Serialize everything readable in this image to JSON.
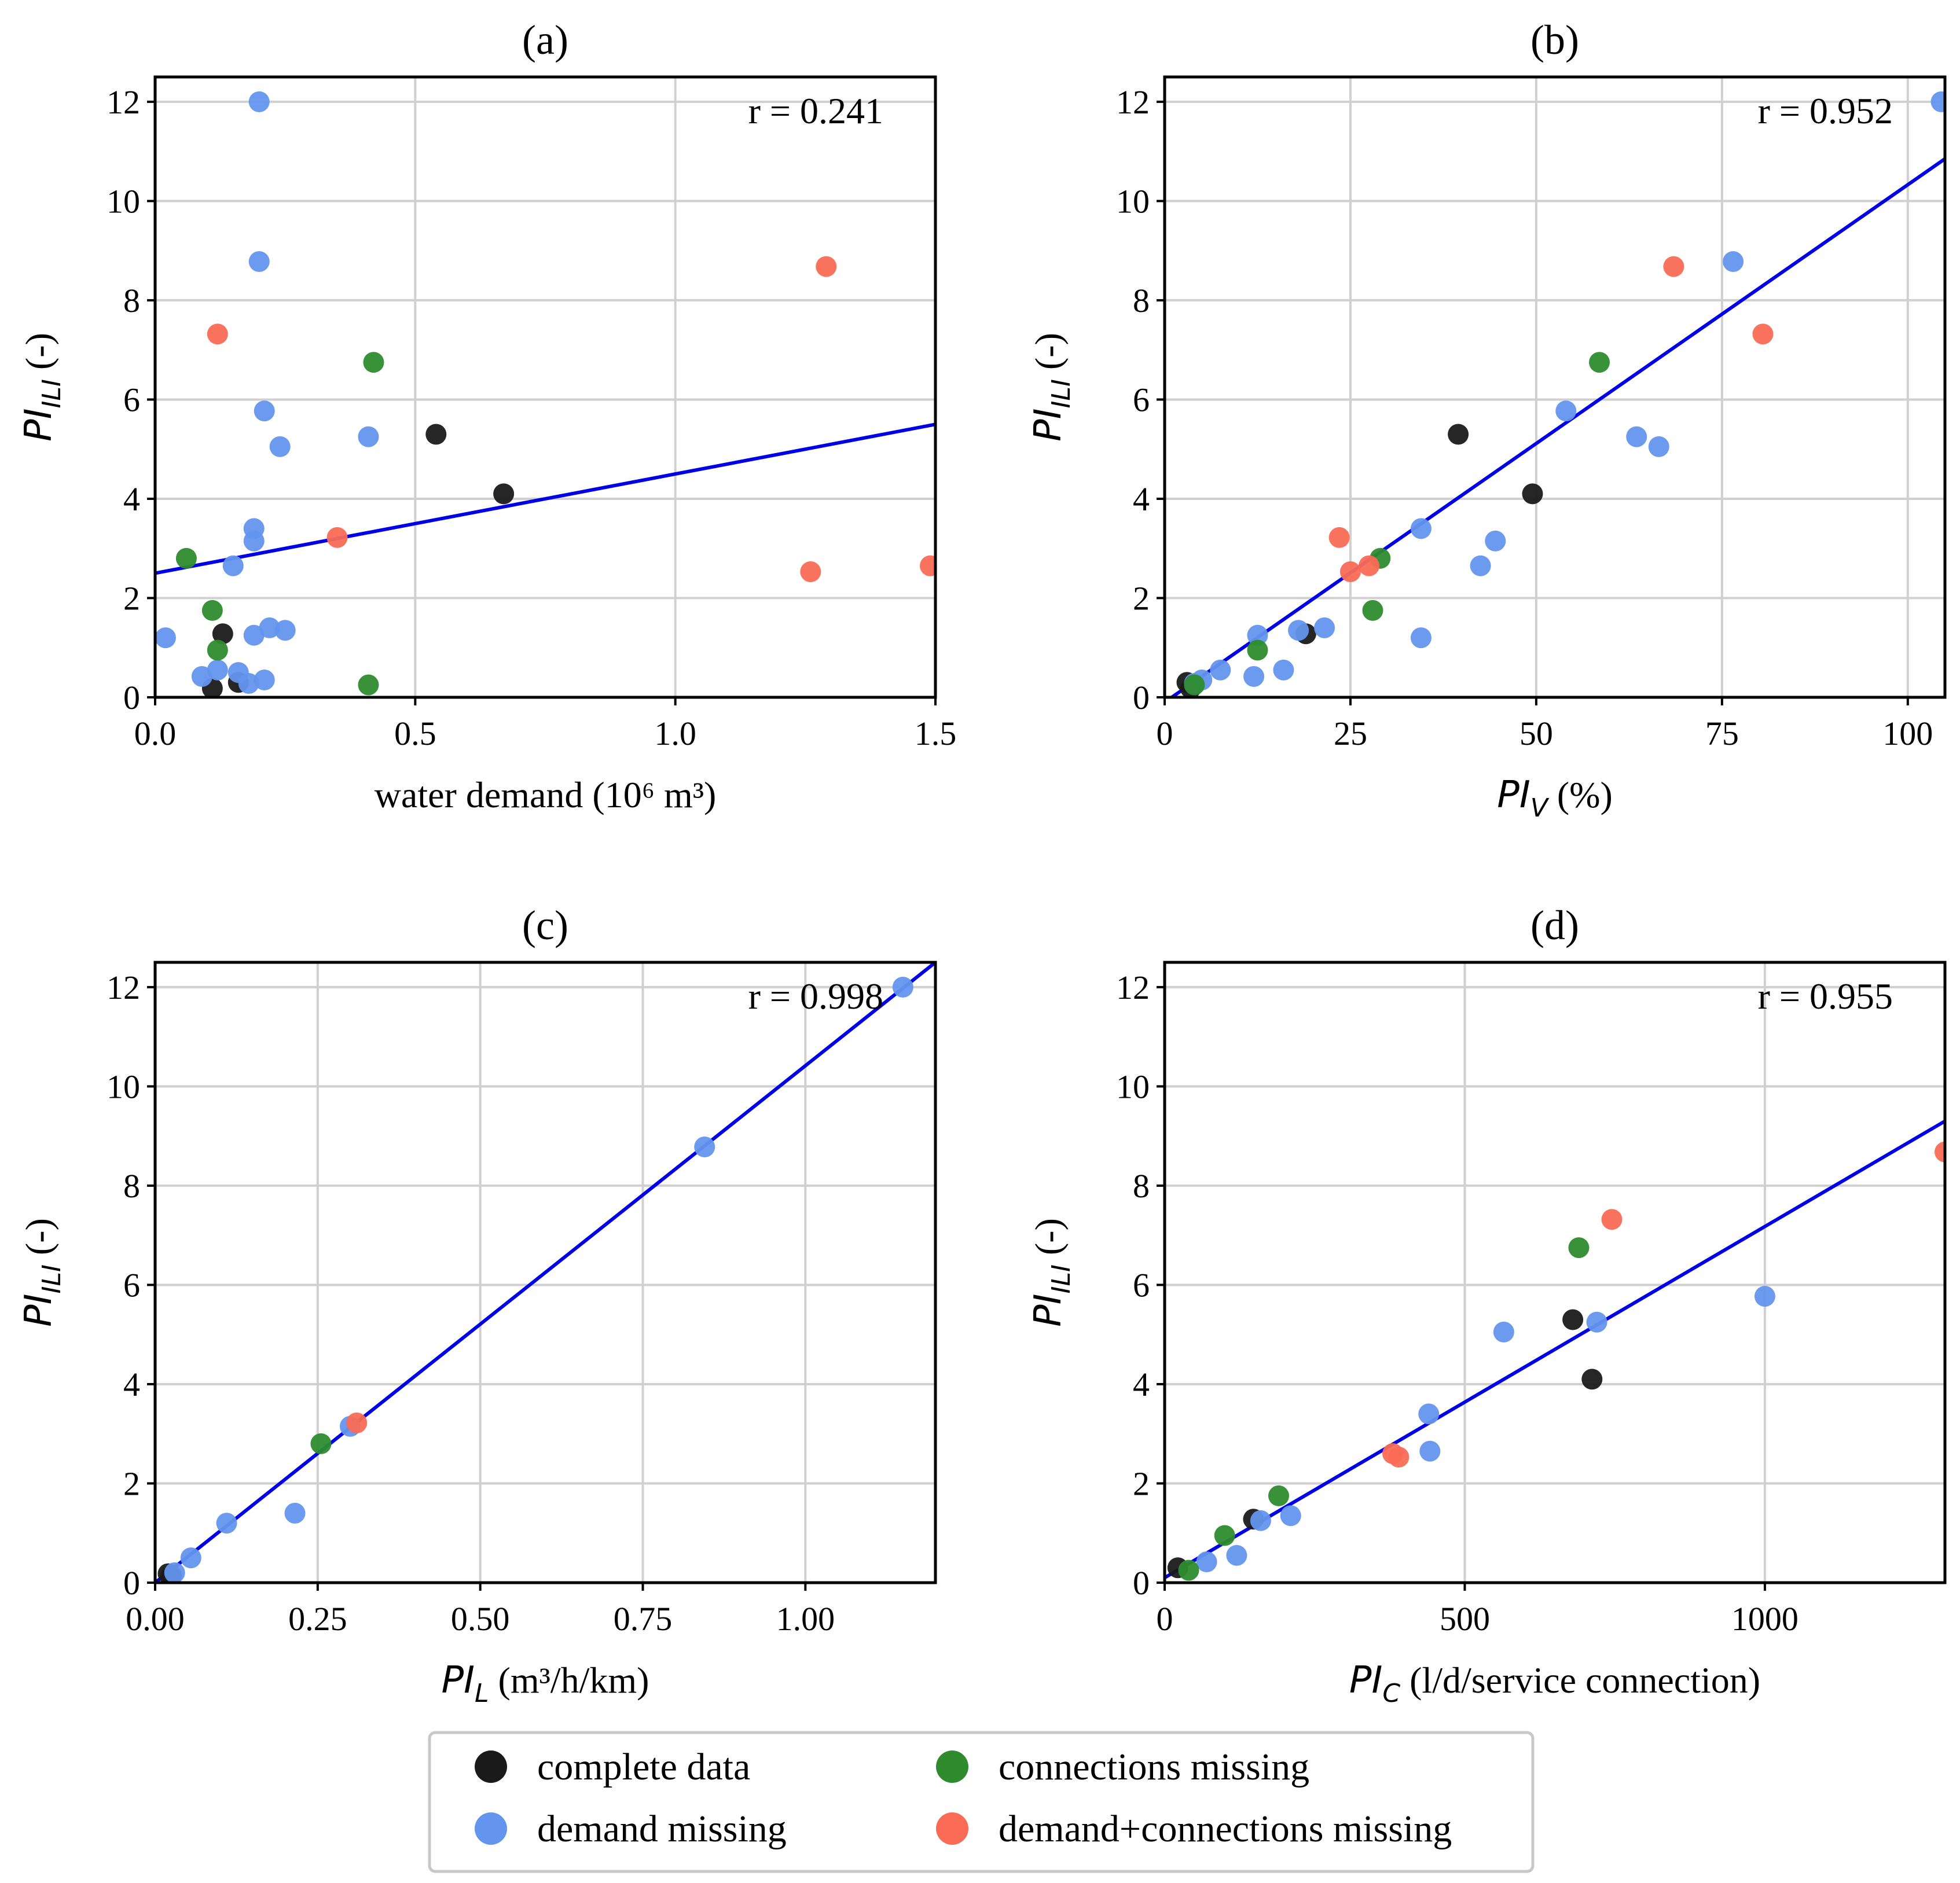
{
  "colors": {
    "complete": "#1a1a1a",
    "demand_missing": "#6495ed",
    "connections_missing": "#2e8b2e",
    "both_missing": "#fa6b55",
    "fit_line": "#0000e6"
  },
  "legend": [
    {
      "key": "complete",
      "label": "complete data"
    },
    {
      "key": "demand_missing",
      "label": "demand missing"
    },
    {
      "key": "connections_missing",
      "label": "connections missing"
    },
    {
      "key": "both_missing",
      "label": "demand+connections missing"
    }
  ],
  "chart_data": [
    {
      "id": "a",
      "type": "scatter",
      "title": "(a)",
      "xlabel_parts": [
        {
          "t": "water demand (10⁶ m³)",
          "style": "plain"
        }
      ],
      "ylabel_parts": [
        {
          "t": "PI",
          "style": "italic"
        },
        {
          "t": "ILI",
          "style": "italic-sub"
        },
        {
          "t": " (-)",
          "style": "plain"
        }
      ],
      "xlim": [
        0,
        1.5
      ],
      "ylim": [
        0,
        12.5
      ],
      "xticks": [
        0,
        0.5,
        1.0,
        1.5
      ],
      "xtick_labels": [
        "0.0",
        "0.5",
        "1.0",
        "1.5"
      ],
      "yticks": [
        0,
        2,
        4,
        6,
        8,
        10,
        12
      ],
      "ytick_labels": [
        "0",
        "2",
        "4",
        "6",
        "8",
        "10",
        "12"
      ],
      "grid": true,
      "annotation": "r = 0.241",
      "fit_line": {
        "x": [
          0,
          1.5
        ],
        "y": [
          2.5,
          5.5
        ]
      },
      "series": [
        {
          "name": "complete data",
          "key": "complete",
          "x": [
            0.11,
            0.13,
            0.16,
            0.54,
            0.67
          ],
          "y": [
            0.18,
            1.28,
            0.3,
            5.3,
            4.1
          ]
        },
        {
          "name": "demand missing",
          "key": "demand_missing",
          "x": [
            0.2,
            0.2,
            0.21,
            0.24,
            0.41,
            0.19,
            0.19,
            0.15,
            0.02,
            0.19,
            0.22,
            0.25,
            0.09,
            0.12,
            0.16,
            0.21,
            0.18
          ],
          "y": [
            12.0,
            8.78,
            5.77,
            5.05,
            5.25,
            3.4,
            3.15,
            2.65,
            1.2,
            1.25,
            1.4,
            1.35,
            0.42,
            0.55,
            0.5,
            0.35,
            0.28
          ]
        },
        {
          "name": "connections missing",
          "key": "connections_missing",
          "x": [
            0.42,
            0.06,
            0.11,
            0.12,
            0.41
          ],
          "y": [
            6.75,
            2.8,
            1.75,
            0.95,
            0.25
          ]
        },
        {
          "name": "demand+connections missing",
          "key": "both_missing",
          "x": [
            0.12,
            1.29,
            0.35,
            1.26,
            1.49
          ],
          "y": [
            7.32,
            8.68,
            3.22,
            2.53,
            2.65
          ]
        }
      ]
    },
    {
      "id": "b",
      "type": "scatter",
      "title": "(b)",
      "xlabel_parts": [
        {
          "t": "PI",
          "style": "italic"
        },
        {
          "t": "V",
          "style": "italic-sub"
        },
        {
          "t": " (%)",
          "style": "plain"
        }
      ],
      "ylabel_parts": [
        {
          "t": "PI",
          "style": "italic"
        },
        {
          "t": "ILI",
          "style": "italic-sub"
        },
        {
          "t": " (-)",
          "style": "plain"
        }
      ],
      "xlim": [
        0,
        105
      ],
      "ylim": [
        0,
        12.5
      ],
      "xticks": [
        0,
        25,
        50,
        75,
        100
      ],
      "xtick_labels": [
        "0",
        "25",
        "50",
        "75",
        "100"
      ],
      "yticks": [
        0,
        2,
        4,
        6,
        8,
        10,
        12
      ],
      "ytick_labels": [
        "0",
        "2",
        "4",
        "6",
        "8",
        "10",
        "12"
      ],
      "grid": true,
      "annotation": "r = 0.952",
      "fit_line": {
        "x": [
          0,
          105
        ],
        "y": [
          -0.1,
          10.85
        ]
      },
      "series": [
        {
          "name": "complete data",
          "key": "complete",
          "x": [
            39.5,
            49.5,
            19,
            3,
            3.5
          ],
          "y": [
            5.3,
            4.1,
            1.28,
            0.3,
            0.18
          ]
        },
        {
          "name": "demand missing",
          "key": "demand_missing",
          "x": [
            104.5,
            76.5,
            54,
            63.5,
            66.5,
            34.5,
            44.5,
            42.5,
            34.5,
            12.5,
            18,
            21.5,
            7.5,
            12,
            16,
            5,
            4
          ],
          "y": [
            12.0,
            8.78,
            5.77,
            5.25,
            5.05,
            3.4,
            3.15,
            2.65,
            1.2,
            1.25,
            1.35,
            1.4,
            0.55,
            0.42,
            0.55,
            0.35,
            0.28
          ]
        },
        {
          "name": "connections missing",
          "key": "connections_missing",
          "x": [
            58.5,
            29,
            28,
            12.5,
            4
          ],
          "y": [
            6.75,
            2.8,
            1.75,
            0.95,
            0.25
          ]
        },
        {
          "name": "demand+connections missing",
          "key": "both_missing",
          "x": [
            68.5,
            80.5,
            23.5,
            25,
            27.5
          ],
          "y": [
            8.68,
            7.32,
            3.22,
            2.53,
            2.65
          ]
        }
      ]
    },
    {
      "id": "c",
      "type": "scatter",
      "title": "(c)",
      "xlabel_parts": [
        {
          "t": "PI",
          "style": "italic"
        },
        {
          "t": "L",
          "style": "italic-sub"
        },
        {
          "t": " (m³/h/km)",
          "style": "plain"
        }
      ],
      "ylabel_parts": [
        {
          "t": "PI",
          "style": "italic"
        },
        {
          "t": "ILI",
          "style": "italic-sub"
        },
        {
          "t": " (-)",
          "style": "plain"
        }
      ],
      "xlim": [
        0,
        1.2
      ],
      "ylim": [
        0,
        12.5
      ],
      "xticks": [
        0,
        0.25,
        0.5,
        0.75,
        1.0
      ],
      "xtick_labels": [
        "0.00",
        "0.25",
        "0.50",
        "0.75",
        "1.00"
      ],
      "yticks": [
        0,
        2,
        4,
        6,
        8,
        10,
        12
      ],
      "ytick_labels": [
        "0",
        "2",
        "4",
        "6",
        "8",
        "10",
        "12"
      ],
      "grid": true,
      "annotation": "r = 0.998",
      "fit_line": {
        "x": [
          0,
          1.2
        ],
        "y": [
          0.0,
          12.5
        ]
      },
      "series": [
        {
          "name": "complete data",
          "key": "complete",
          "x": [
            0.02,
            0.025
          ],
          "y": [
            0.18,
            0.15
          ]
        },
        {
          "name": "demand missing",
          "key": "demand_missing",
          "x": [
            1.15,
            0.845,
            0.3,
            0.11,
            0.215,
            0.055,
            0.03
          ],
          "y": [
            12.0,
            8.78,
            3.15,
            1.2,
            1.4,
            0.5,
            0.2
          ]
        },
        {
          "name": "connections missing",
          "key": "connections_missing",
          "x": [
            0.255
          ],
          "y": [
            2.8
          ]
        },
        {
          "name": "demand+connections missing",
          "key": "both_missing",
          "x": [
            0.31
          ],
          "y": [
            3.22
          ]
        }
      ]
    },
    {
      "id": "d",
      "type": "scatter",
      "title": "(d)",
      "xlabel_parts": [
        {
          "t": "PI",
          "style": "italic"
        },
        {
          "t": "C",
          "style": "italic-sub"
        },
        {
          "t": " (l/d/service connection)",
          "style": "plain"
        }
      ],
      "ylabel_parts": [
        {
          "t": "PI",
          "style": "italic"
        },
        {
          "t": "ILI",
          "style": "italic-sub"
        },
        {
          "t": " (-)",
          "style": "plain"
        }
      ],
      "xlim": [
        0,
        1300
      ],
      "ylim": [
        0,
        12.5
      ],
      "xticks": [
        0,
        500,
        1000
      ],
      "xtick_labels": [
        "0",
        "500",
        "1000"
      ],
      "yticks": [
        0,
        2,
        4,
        6,
        8,
        10,
        12
      ],
      "ytick_labels": [
        "0",
        "2",
        "4",
        "6",
        "8",
        "10",
        "12"
      ],
      "grid": true,
      "annotation": "r = 0.955",
      "fit_line": {
        "x": [
          0,
          1300
        ],
        "y": [
          0.1,
          9.3
        ]
      },
      "series": [
        {
          "name": "complete data",
          "key": "complete",
          "x": [
            680,
            712,
            148,
            22
          ],
          "y": [
            5.3,
            4.1,
            1.28,
            0.3
          ]
        },
        {
          "name": "demand missing",
          "key": "demand_missing",
          "x": [
            1000,
            565,
            720,
            440,
            442,
            160,
            210,
            120,
            70
          ],
          "y": [
            5.77,
            5.05,
            5.25,
            3.4,
            2.65,
            1.25,
            1.35,
            0.55,
            0.42
          ]
        },
        {
          "name": "connections missing",
          "key": "connections_missing",
          "x": [
            690,
            190,
            100,
            40
          ],
          "y": [
            6.75,
            1.75,
            0.95,
            0.25
          ]
        },
        {
          "name": "demand+connections missing",
          "key": "both_missing",
          "x": [
            1300,
            745,
            380,
            390
          ],
          "y": [
            8.68,
            7.32,
            2.6,
            2.53
          ]
        }
      ]
    }
  ]
}
